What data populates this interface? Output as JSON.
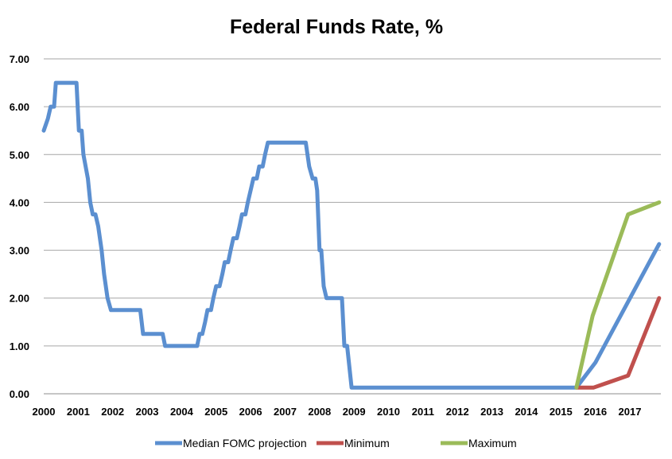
{
  "chart_data": {
    "type": "line",
    "title": "Federal Funds Rate, %",
    "xlabel": "",
    "ylabel": "",
    "xlim": [
      2000,
      2017.9
    ],
    "ylim": [
      0,
      7
    ],
    "yticks": [
      "0.00",
      "1.00",
      "2.00",
      "3.00",
      "4.00",
      "5.00",
      "6.00",
      "7.00"
    ],
    "xticks": [
      "2000",
      "2001",
      "2002",
      "2003",
      "2004",
      "2005",
      "2006",
      "2007",
      "2008",
      "2009",
      "2010",
      "2011",
      "2012",
      "2013",
      "2014",
      "2015",
      "2016",
      "2017"
    ],
    "grid": true,
    "legend_position": "bottom",
    "series": [
      {
        "name": "Median FOMC projection",
        "color": "#5b8fd0",
        "points": [
          [
            2000.0,
            5.5
          ],
          [
            2000.12,
            5.75
          ],
          [
            2000.2,
            6.0
          ],
          [
            2000.3,
            6.0
          ],
          [
            2000.35,
            6.5
          ],
          [
            2000.95,
            6.5
          ],
          [
            2001.02,
            5.5
          ],
          [
            2001.1,
            5.5
          ],
          [
            2001.15,
            5.0
          ],
          [
            2001.28,
            4.5
          ],
          [
            2001.35,
            4.0
          ],
          [
            2001.42,
            3.75
          ],
          [
            2001.5,
            3.75
          ],
          [
            2001.58,
            3.5
          ],
          [
            2001.68,
            3.0
          ],
          [
            2001.75,
            2.5
          ],
          [
            2001.85,
            2.0
          ],
          [
            2001.95,
            1.75
          ],
          [
            2002.8,
            1.75
          ],
          [
            2002.88,
            1.25
          ],
          [
            2003.45,
            1.25
          ],
          [
            2003.52,
            1.0
          ],
          [
            2004.45,
            1.0
          ],
          [
            2004.52,
            1.25
          ],
          [
            2004.6,
            1.25
          ],
          [
            2004.68,
            1.5
          ],
          [
            2004.75,
            1.75
          ],
          [
            2004.85,
            1.75
          ],
          [
            2004.92,
            2.0
          ],
          [
            2005.0,
            2.25
          ],
          [
            2005.1,
            2.25
          ],
          [
            2005.18,
            2.5
          ],
          [
            2005.25,
            2.75
          ],
          [
            2005.35,
            2.75
          ],
          [
            2005.42,
            3.0
          ],
          [
            2005.5,
            3.25
          ],
          [
            2005.6,
            3.25
          ],
          [
            2005.68,
            3.5
          ],
          [
            2005.75,
            3.75
          ],
          [
            2005.85,
            3.75
          ],
          [
            2005.92,
            4.0
          ],
          [
            2006.0,
            4.25
          ],
          [
            2006.08,
            4.5
          ],
          [
            2006.18,
            4.5
          ],
          [
            2006.25,
            4.75
          ],
          [
            2006.35,
            4.75
          ],
          [
            2006.42,
            5.0
          ],
          [
            2006.5,
            5.25
          ],
          [
            2007.6,
            5.25
          ],
          [
            2007.7,
            4.75
          ],
          [
            2007.8,
            4.5
          ],
          [
            2007.88,
            4.5
          ],
          [
            2007.93,
            4.25
          ],
          [
            2008.0,
            3.0
          ],
          [
            2008.05,
            3.0
          ],
          [
            2008.12,
            2.25
          ],
          [
            2008.2,
            2.0
          ],
          [
            2008.65,
            2.0
          ],
          [
            2008.72,
            1.0
          ],
          [
            2008.8,
            1.0
          ],
          [
            2008.93,
            0.13
          ],
          [
            2015.45,
            0.13
          ],
          [
            2016.0,
            0.65
          ],
          [
            2017.85,
            3.13
          ]
        ]
      },
      {
        "name": "Minimum",
        "color": "#c0504d",
        "points": [
          [
            2015.45,
            0.13
          ],
          [
            2015.95,
            0.13
          ],
          [
            2016.95,
            0.38
          ],
          [
            2017.85,
            2.0
          ]
        ]
      },
      {
        "name": "Maximum",
        "color": "#9bbb59",
        "points": [
          [
            2015.45,
            0.13
          ],
          [
            2015.92,
            1.63
          ],
          [
            2016.95,
            3.75
          ],
          [
            2017.85,
            4.0
          ]
        ]
      }
    ]
  }
}
